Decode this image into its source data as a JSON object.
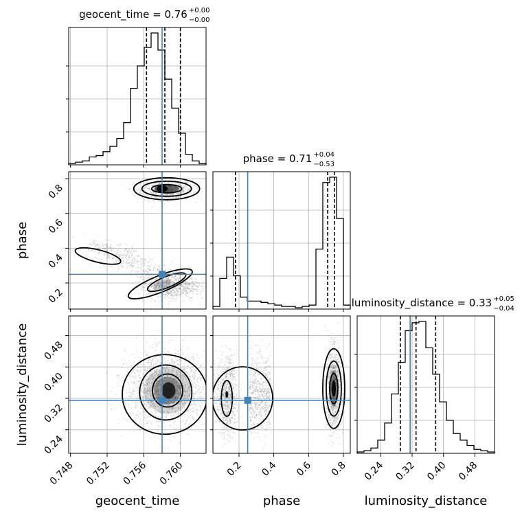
{
  "chart_data": {
    "type": "corner",
    "parameters": [
      "geocent_time",
      "phase",
      "luminosity_distance"
    ],
    "truths": {
      "geocent_time": 0.758,
      "phase": 0.25,
      "luminosity_distance": 0.315
    },
    "colors": {
      "truth": "#4682b4",
      "hist": "#000000",
      "grid": "#b0b0b0",
      "scatter": "#555555"
    },
    "titles": [
      {
        "param": "geocent_time",
        "main": "geocent_time = 0.76",
        "upper": "+0.00",
        "lower": "−0.00"
      },
      {
        "param": "phase",
        "main": "phase = 0.71",
        "upper": "+0.04",
        "lower": "−0.53"
      },
      {
        "param": "luminosity_distance",
        "main": "luminosity_distance = 0.33",
        "upper": "+0.05",
        "lower": "−0.04"
      }
    ],
    "axes": {
      "geocent_time": {
        "range": [
          0.7478,
          0.7628
        ],
        "ticks": [
          0.748,
          0.752,
          0.756,
          0.76
        ],
        "tick_labels": [
          "0.748",
          "0.752",
          "0.756",
          "0.760"
        ],
        "label": "geocent_time"
      },
      "phase": {
        "range": [
          0.05,
          0.84
        ],
        "ticks": [
          0.2,
          0.4,
          0.6,
          0.8
        ],
        "tick_labels": [
          "0.2",
          "0.4",
          "0.6",
          "0.8"
        ],
        "label": "phase"
      },
      "luminosity_distance": {
        "range": [
          0.18,
          0.53
        ],
        "ticks": [
          0.24,
          0.32,
          0.4,
          0.48
        ],
        "tick_labels": [
          "0.24",
          "0.32",
          "0.40",
          "0.48"
        ],
        "label": "luminosity_distance"
      }
    },
    "quantiles": {
      "geocent_time": [
        0.7563,
        0.7583,
        0.76
      ],
      "phase": [
        0.18,
        0.71,
        0.75
      ],
      "luminosity_distance": [
        0.29,
        0.33,
        0.38
      ]
    },
    "histograms": {
      "geocent_time": {
        "edges_start": 0.7478,
        "edges_step": 0.00075,
        "counts": [
          1,
          2,
          3,
          6,
          7,
          10,
          14,
          20,
          32,
          58,
          75,
          89,
          100,
          87,
          65,
          43,
          24,
          8,
          3,
          1
        ]
      },
      "phase": {
        "edges_start": 0.05,
        "edges_step": 0.0395,
        "counts": [
          2,
          23,
          39,
          25,
          9,
          6,
          6,
          5,
          4,
          3,
          2,
          2,
          1,
          2,
          3,
          45,
          95,
          99,
          68,
          3
        ]
      },
      "luminosity_distance": {
        "edges_start": 0.18,
        "edges_step": 0.0175,
        "counts": [
          1,
          2,
          4,
          10,
          23,
          45,
          69,
          93,
          99,
          100,
          80,
          60,
          39,
          25,
          15,
          10,
          6,
          3,
          2,
          1
        ]
      }
    },
    "y_axis_labels": [
      "phase",
      "luminosity_distance"
    ],
    "x_axis_labels": [
      "geocent_time",
      "phase",
      "luminosity_distance"
    ]
  }
}
